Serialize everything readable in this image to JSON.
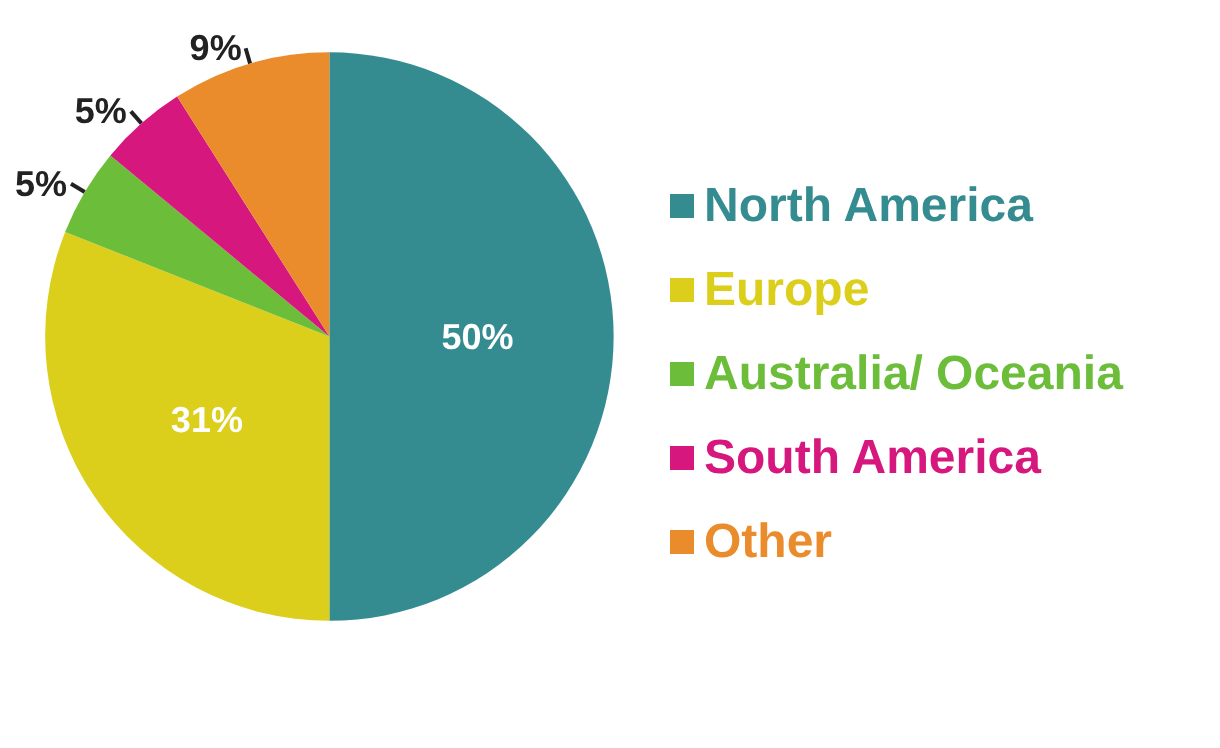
{
  "chart_data": {
    "type": "pie",
    "categories": [
      "North America",
      "Europe",
      "Australia/ Oceania",
      "South America",
      "Other"
    ],
    "values": [
      50,
      31,
      5,
      5,
      9
    ],
    "colors": [
      "#358c90",
      "#dccf1c",
      "#6cbd3a",
      "#d6177e",
      "#ea8c2b"
    ],
    "value_labels": [
      "50%",
      "31%",
      "5%",
      "5%",
      "9%"
    ],
    "legend": "right"
  }
}
